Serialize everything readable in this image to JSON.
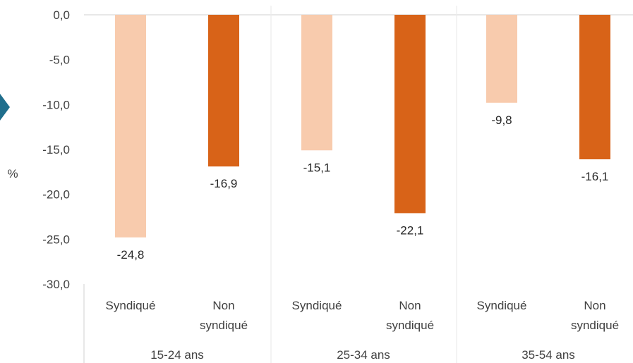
{
  "chart_data": {
    "type": "bar",
    "ylabel": "%",
    "ylim": [
      -30,
      0
    ],
    "yticks": [
      "0,0",
      "-5,0",
      "-10,0",
      "-15,0",
      "-20,0",
      "-25,0",
      "-30,0"
    ],
    "groups": [
      {
        "label": "15-24 ans",
        "bars": [
          {
            "category": [
              "Syndiqué"
            ],
            "value": -24.8,
            "label": "-24,8",
            "color": "#F8CBAD"
          },
          {
            "category": [
              "Non",
              "syndiqué"
            ],
            "value": -16.9,
            "label": "-16,9",
            "color": "#D86318"
          }
        ]
      },
      {
        "label": "25-34 ans",
        "bars": [
          {
            "category": [
              "Syndiqué"
            ],
            "value": -15.1,
            "label": "-15,1",
            "color": "#F8CBAD"
          },
          {
            "category": [
              "Non",
              "syndiqué"
            ],
            "value": -22.1,
            "label": "-22,1",
            "color": "#D86318"
          }
        ]
      },
      {
        "label": "35-54 ans",
        "bars": [
          {
            "category": [
              "Syndiqué"
            ],
            "value": -9.8,
            "label": "-9,8",
            "color": "#F8CBAD"
          },
          {
            "category": [
              "Non",
              "syndiqué"
            ],
            "value": -16.1,
            "label": "-16,1",
            "color": "#D86318"
          }
        ]
      }
    ],
    "grid": false,
    "colors": {
      "syndique": "#F8CBAD",
      "non_syndique": "#D86318",
      "axis": "#D9D9D9",
      "accent_marker": "#1F6E8C"
    }
  }
}
